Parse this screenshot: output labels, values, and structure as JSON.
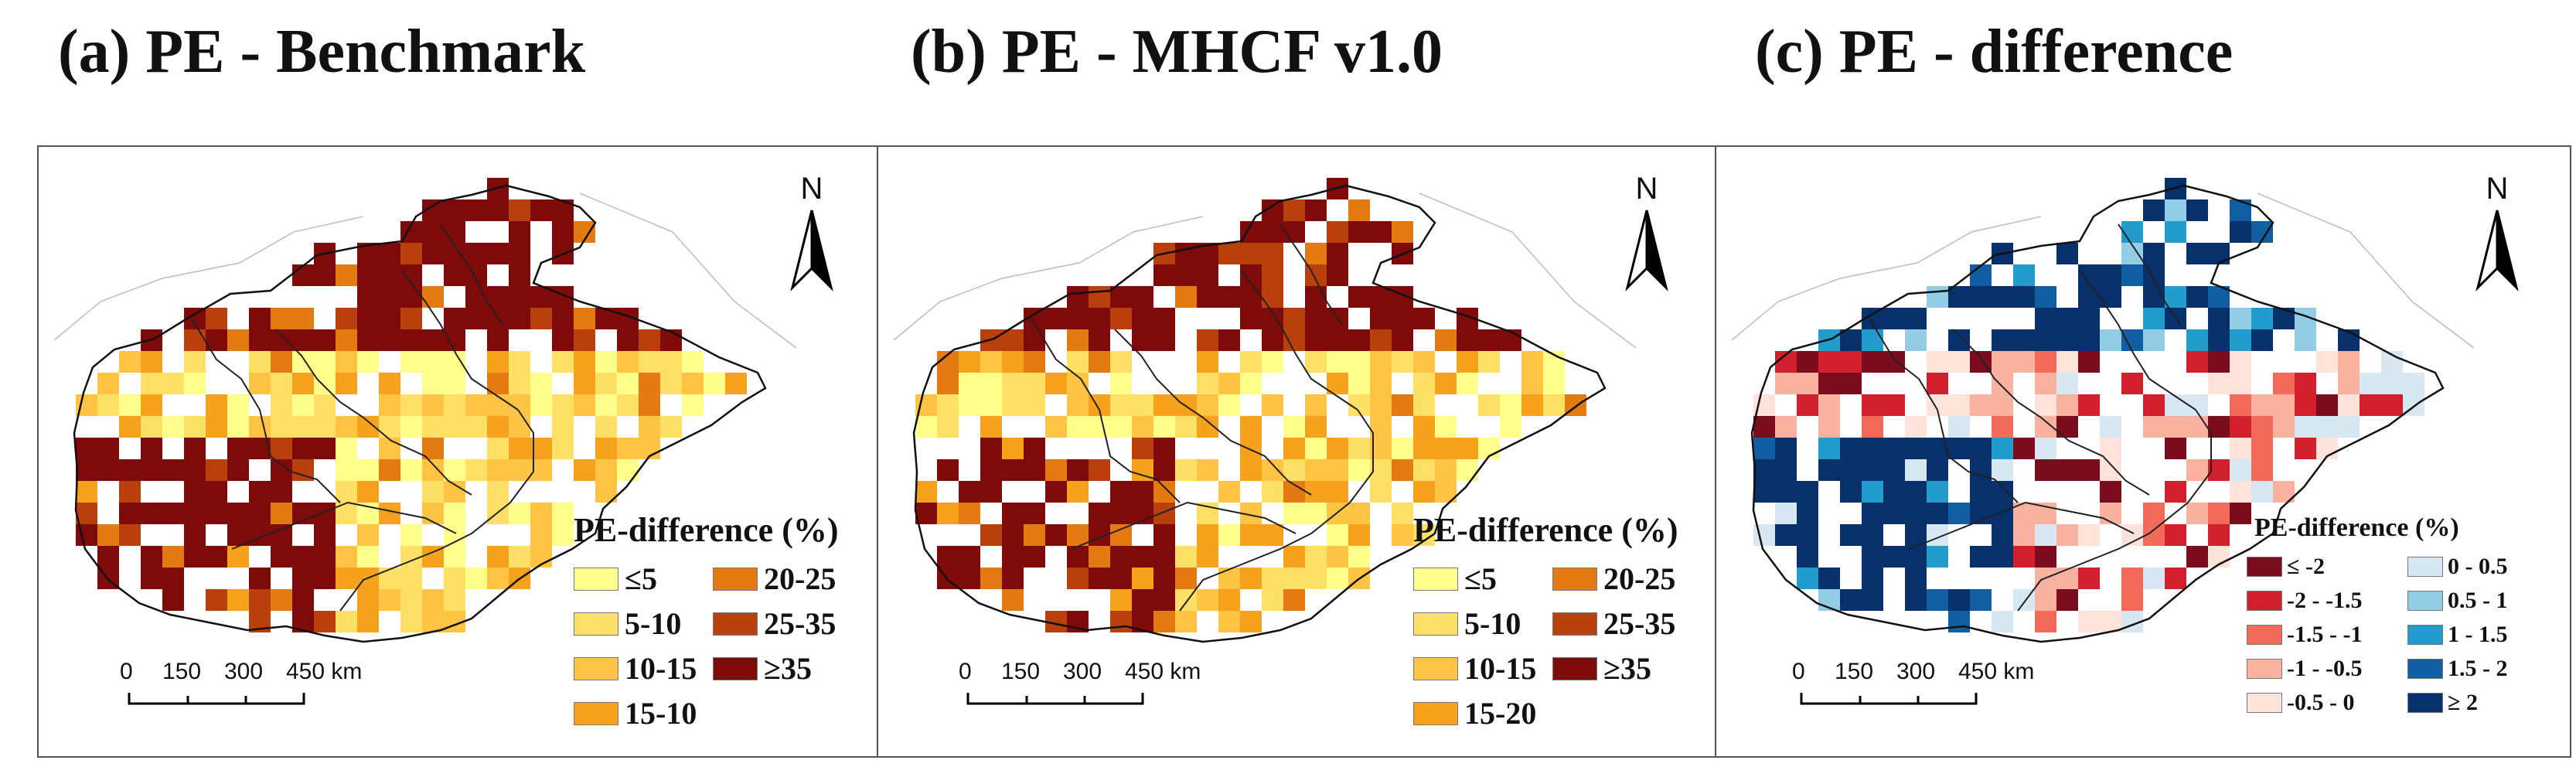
{
  "panels": [
    {
      "id": "a",
      "title": "(a) PE - Benchmark"
    },
    {
      "id": "b",
      "title": "(b) PE - MHCF v1.0"
    },
    {
      "id": "c",
      "title": "(c) PE - difference"
    }
  ],
  "north_label": "N",
  "scale": {
    "ticks": [
      "0",
      "150",
      "300",
      "450 km"
    ]
  },
  "legend_pe": {
    "title": "PE-difference (%)",
    "items_a": [
      {
        "label": "≤5",
        "color": "#ffff8c"
      },
      {
        "label": "5-10",
        "color": "#ffe066"
      },
      {
        "label": "10-15",
        "color": "#ffc443"
      },
      {
        "label": "15-10",
        "color": "#f7a21c"
      },
      {
        "label": "20-25",
        "color": "#e47a12"
      },
      {
        "label": "25-35",
        "color": "#b9400d"
      },
      {
        "label": "≥35",
        "color": "#7f0a0a"
      }
    ],
    "items_b": [
      {
        "label": "≤5",
        "color": "#ffff8c"
      },
      {
        "label": "5-10",
        "color": "#ffe066"
      },
      {
        "label": "10-15",
        "color": "#ffc443"
      },
      {
        "label": "15-20",
        "color": "#f7a21c"
      },
      {
        "label": "20-25",
        "color": "#e47a12"
      },
      {
        "label": "25-35",
        "color": "#b9400d"
      },
      {
        "label": "≥35",
        "color": "#7f0a0a"
      }
    ]
  },
  "legend_diff": {
    "title": "PE-difference (%)",
    "items": [
      {
        "label": "≤ -2",
        "color": "#7a0c1e"
      },
      {
        "label": "-2 - -1.5",
        "color": "#d11f2e"
      },
      {
        "label": "-1.5 - -1",
        "color": "#f26a5a"
      },
      {
        "label": "-1 - -0.5",
        "color": "#f9b1a0"
      },
      {
        "label": "-0.5 - 0",
        "color": "#fde3da"
      },
      {
        "label": "0 - 0.5",
        "color": "#d8e8f2"
      },
      {
        "label": "0.5 - 1",
        "color": "#93cde5"
      },
      {
        "label": "1 - 1.5",
        "color": "#229bcd"
      },
      {
        "label": "1.5 - 2",
        "color": "#115ea3"
      },
      {
        "label": "≥ 2",
        "color": "#08306b"
      }
    ]
  }
}
